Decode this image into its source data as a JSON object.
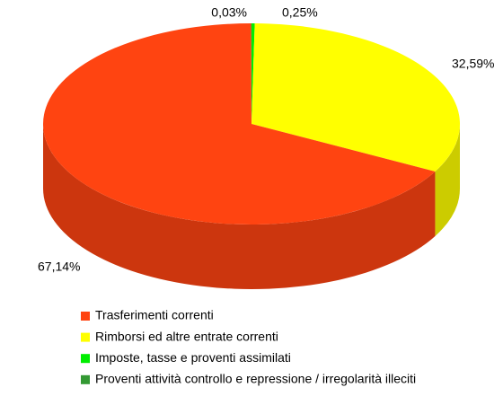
{
  "chart_data": {
    "type": "pie",
    "categories": [
      "Trasferimenti correnti",
      "Rimborsi ed altre entrate correnti",
      "Imposte, tasse e proventi assimilati",
      "Proventi attività controllo e repressione / irregolarità illeciti"
    ],
    "values": [
      67.14,
      32.59,
      0.25,
      0.03
    ],
    "value_labels": [
      "67,14%",
      "32,59%",
      "0,25%",
      "0,03%"
    ],
    "colors": [
      "#ff4411",
      "#ffff00",
      "#00ee00",
      "#339933"
    ],
    "legend": "bottom"
  }
}
